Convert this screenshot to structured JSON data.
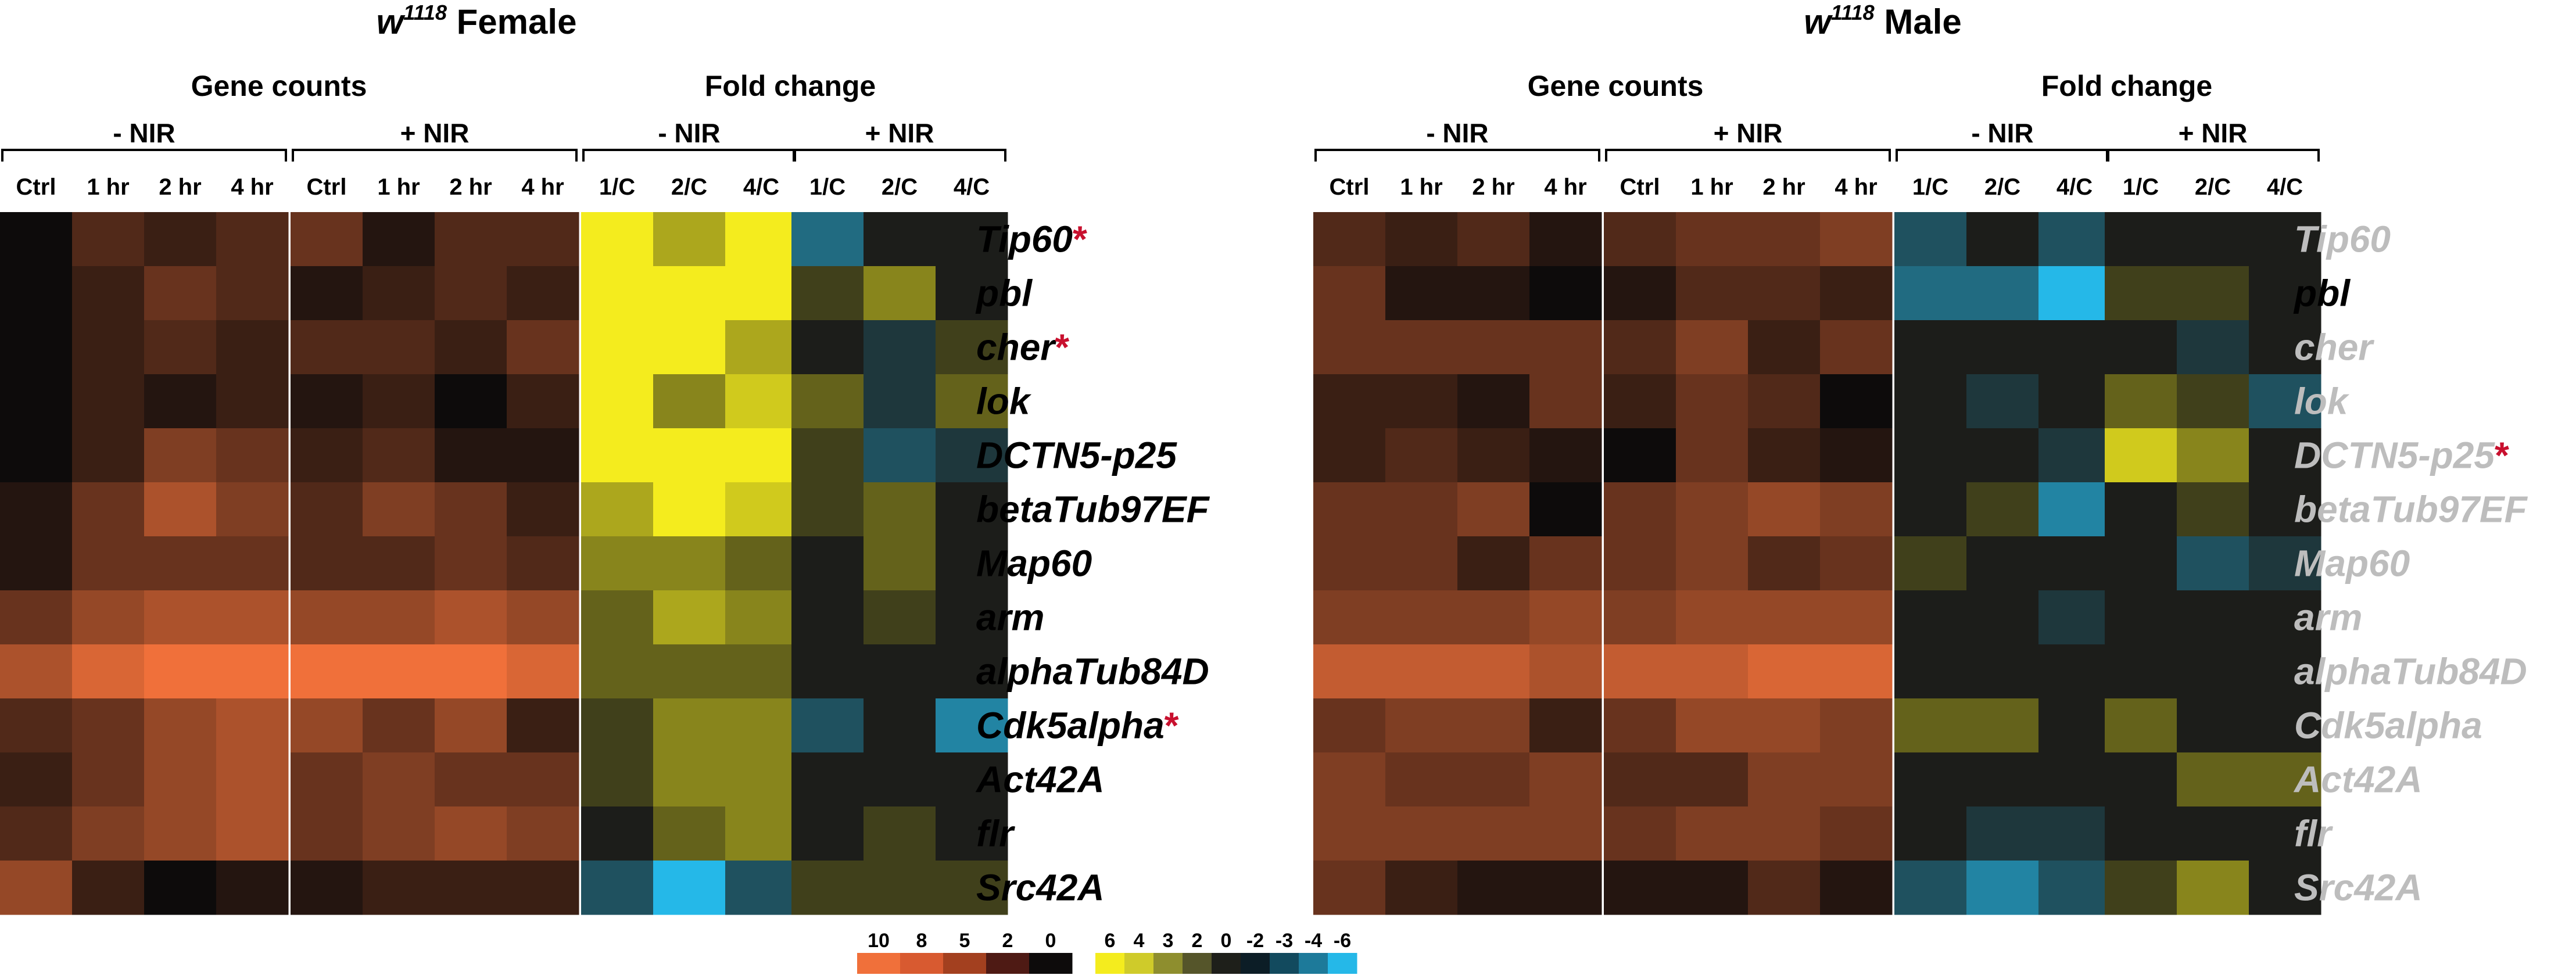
{
  "chart_data": {
    "type": "heatmap",
    "genes": [
      "Tip60",
      "pbl",
      "cher",
      "lok",
      "DCTN5-p25",
      "betaTub97EF",
      "Map60",
      "arm",
      "alphaTub84D",
      "Cdk5alpha",
      "Act42A",
      "flr",
      "Src42A"
    ],
    "panels": [
      {
        "title_main": "w",
        "title_sup": "1118",
        "title_rest": " Female",
        "groups": {
          "gene_counts": "Gene counts",
          "fold_change": "Fold change"
        },
        "subgroups": [
          "- NIR",
          "+ NIR",
          "- NIR",
          "+ NIR"
        ],
        "counts_columns": [
          "Ctrl",
          "1 hr",
          "2 hr",
          "4 hr"
        ],
        "fold_columns": [
          "1/C",
          "2/C",
          "4/C"
        ],
        "counts_minus": [
          [
            0,
            3,
            2,
            3
          ],
          [
            0,
            2,
            4,
            3
          ],
          [
            0,
            2,
            3,
            2
          ],
          [
            0,
            2,
            1,
            2
          ],
          [
            0,
            2,
            5,
            4
          ],
          [
            1,
            4,
            7,
            5
          ],
          [
            1,
            4,
            4,
            4
          ],
          [
            4,
            6,
            7,
            7
          ],
          [
            7,
            9,
            10,
            10
          ],
          [
            3,
            4,
            6,
            7
          ],
          [
            2,
            4,
            6,
            7
          ],
          [
            3,
            5,
            6,
            7
          ],
          [
            6,
            2,
            0,
            1
          ]
        ],
        "counts_plus": [
          [
            4,
            1,
            3,
            3
          ],
          [
            1,
            2,
            3,
            2
          ],
          [
            3,
            3,
            2,
            4
          ],
          [
            1,
            2,
            0,
            2
          ],
          [
            2,
            3,
            1,
            1
          ],
          [
            3,
            5,
            4,
            2
          ],
          [
            3,
            3,
            4,
            3
          ],
          [
            6,
            6,
            7,
            6
          ],
          [
            10,
            10,
            10,
            9
          ],
          [
            6,
            4,
            6,
            2
          ],
          [
            4,
            5,
            4,
            4
          ],
          [
            4,
            5,
            6,
            5
          ],
          [
            1,
            2,
            2,
            2
          ]
        ],
        "fold_minus": [
          [
            6,
            4,
            6
          ],
          [
            6,
            6,
            6
          ],
          [
            6,
            6,
            4
          ],
          [
            6,
            3,
            5
          ],
          [
            6,
            6,
            6
          ],
          [
            4,
            6,
            5
          ],
          [
            3,
            3,
            2
          ],
          [
            2,
            4,
            3
          ],
          [
            2,
            2,
            2
          ],
          [
            1,
            3,
            3
          ],
          [
            1,
            3,
            3
          ],
          [
            0,
            2,
            3
          ],
          [
            -2,
            -6,
            -2
          ]
        ],
        "fold_plus": [
          [
            -3,
            0,
            0
          ],
          [
            1,
            3,
            0
          ],
          [
            0,
            -1,
            1
          ],
          [
            2,
            -1,
            2
          ],
          [
            1,
            -2,
            -1
          ],
          [
            1,
            2,
            0
          ],
          [
            0,
            2,
            0
          ],
          [
            0,
            1,
            0
          ],
          [
            0,
            0,
            0
          ],
          [
            -2,
            0,
            -4
          ],
          [
            0,
            0,
            0
          ],
          [
            0,
            1,
            0
          ],
          [
            1,
            1,
            1
          ]
        ],
        "gene_label_color": [
          "#000000",
          "#000000",
          "#000000",
          "#000000",
          "#000000",
          "#000000",
          "#000000",
          "#000000",
          "#000000",
          "#000000",
          "#000000",
          "#000000",
          "#000000"
        ],
        "asterisk_genes": [
          "Tip60",
          "cher",
          "Cdk5alpha"
        ]
      },
      {
        "title_main": "w",
        "title_sup": "1118",
        "title_rest": " Male",
        "groups": {
          "gene_counts": "Gene counts",
          "fold_change": "Fold change"
        },
        "subgroups": [
          "- NIR",
          "+ NIR",
          "- NIR",
          "+ NIR"
        ],
        "counts_columns": [
          "Ctrl",
          "1 hr",
          "2 hr",
          "4 hr"
        ],
        "fold_columns": [
          "1/C",
          "2/C",
          "4/C"
        ],
        "counts_minus": [
          [
            3,
            2,
            3,
            1
          ],
          [
            4,
            1,
            1,
            0
          ],
          [
            4,
            4,
            4,
            4
          ],
          [
            2,
            2,
            1,
            4
          ],
          [
            2,
            3,
            2,
            1
          ],
          [
            4,
            4,
            5,
            0
          ],
          [
            4,
            4,
            2,
            4
          ],
          [
            5,
            5,
            5,
            6
          ],
          [
            8,
            8,
            8,
            7
          ],
          [
            4,
            5,
            5,
            2
          ],
          [
            5,
            4,
            4,
            5
          ],
          [
            5,
            5,
            5,
            5
          ],
          [
            4,
            2,
            1,
            1
          ]
        ],
        "counts_plus": [
          [
            3,
            4,
            4,
            5
          ],
          [
            1,
            3,
            3,
            2
          ],
          [
            3,
            5,
            2,
            4
          ],
          [
            2,
            4,
            3,
            0
          ],
          [
            0,
            4,
            2,
            1
          ],
          [
            4,
            5,
            6,
            5
          ],
          [
            4,
            5,
            3,
            4
          ],
          [
            5,
            6,
            6,
            6
          ],
          [
            8,
            8,
            9,
            9
          ],
          [
            4,
            6,
            6,
            5
          ],
          [
            3,
            3,
            5,
            5
          ],
          [
            4,
            5,
            5,
            4
          ],
          [
            1,
            1,
            3,
            1
          ]
        ],
        "fold_minus": [
          [
            -2,
            0,
            -2
          ],
          [
            -3,
            -3,
            -6
          ],
          [
            0,
            0,
            0
          ],
          [
            0,
            -1,
            0
          ],
          [
            0,
            0,
            -1
          ],
          [
            0,
            1,
            -4
          ],
          [
            1,
            0,
            0
          ],
          [
            0,
            0,
            -1
          ],
          [
            0,
            0,
            0
          ],
          [
            2,
            2,
            0
          ],
          [
            0,
            0,
            0
          ],
          [
            0,
            -1,
            -1
          ],
          [
            -2,
            -4,
            -2
          ]
        ],
        "fold_plus": [
          [
            0,
            0,
            0
          ],
          [
            1,
            1,
            0
          ],
          [
            0,
            -1,
            0
          ],
          [
            2,
            1,
            -2
          ],
          [
            5,
            3,
            0
          ],
          [
            0,
            1,
            0
          ],
          [
            0,
            -2,
            -1
          ],
          [
            0,
            0,
            0
          ],
          [
            0,
            0,
            0
          ],
          [
            2,
            0,
            0
          ],
          [
            0,
            2,
            2
          ],
          [
            0,
            0,
            0
          ],
          [
            1,
            3,
            0
          ]
        ],
        "gene_label_color": [
          "#bdbdbd",
          "#000000",
          "#bdbdbd",
          "#bdbdbd",
          "#bdbdbd",
          "#bdbdbd",
          "#bdbdbd",
          "#bdbdbd",
          "#bdbdbd",
          "#bdbdbd",
          "#bdbdbd",
          "#bdbdbd",
          "#bdbdbd"
        ],
        "asterisk_genes": [
          "DCTN5-p25"
        ]
      }
    ],
    "legend_counts": {
      "ticks": [
        "10",
        "8",
        "5",
        "2",
        "0"
      ],
      "colors": [
        "#f0703a",
        "#d85a30",
        "#a3401f",
        "#4e1a14",
        "#0d0b0b"
      ]
    },
    "legend_fold": {
      "ticks": [
        "6",
        "4",
        "3",
        "2",
        "0",
        "-2",
        "-3",
        "-4",
        "-6"
      ],
      "colors": [
        "#f4ec1e",
        "#cfcb2a",
        "#8e8e2e",
        "#55552a",
        "#1e1f1a",
        "#0c1d26",
        "#124a5e",
        "#1d7a9a",
        "#25b8e8"
      ]
    }
  },
  "asterisk": "*",
  "colors": {
    "counts_zero": "#0d0b0b",
    "counts_max": "#f0703a",
    "fold_zero": "#1c1d1a",
    "fold_pos": "#f4ec1e",
    "fold_neg": "#25b8e8",
    "asterisk": "#c8102e"
  }
}
